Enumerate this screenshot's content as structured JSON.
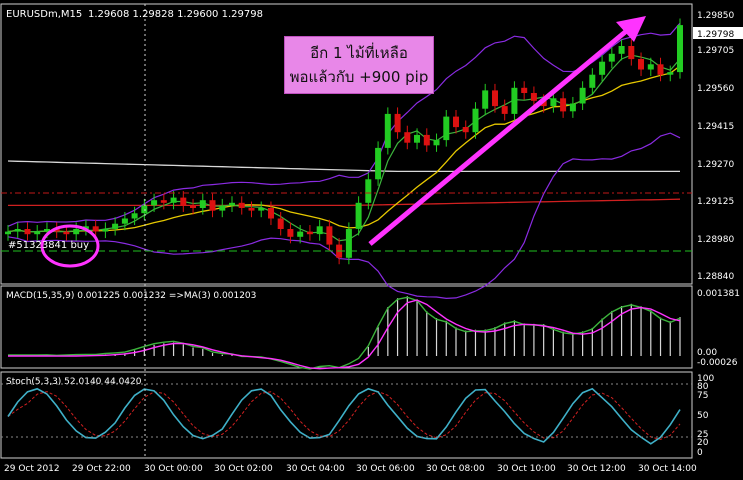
{
  "header": {
    "symbol_label": "EURUSDm,M15",
    "ohlc_label": "1.29608 1.29828 1.29600 1.29798"
  },
  "annotation": {
    "line1": "อีก 1 ไม้ที่เหลือ",
    "line2": "พอแล้วกับ +900 pip"
  },
  "order_label": "#51323841 buy",
  "current_price_label": "1.29798",
  "price_axis": [
    "1.29850",
    "1.29705",
    "1.29560",
    "1.29415",
    "1.29270",
    "1.29125",
    "1.28980",
    "1.28840"
  ],
  "macd": {
    "label": "MACD(15,35,9) 0.001225 0.001232 =>MA(3) 0.001203",
    "axis": [
      "0.001381",
      "0.00",
      "-0.00026"
    ]
  },
  "stoch": {
    "label": "Stoch(5,3,3) 52.0140 44.0420",
    "axis": [
      "100",
      "80",
      "75",
      "50",
      "25",
      "20",
      "0"
    ]
  },
  "time_axis": [
    "29 Oct 2012",
    "29 Oct 22:00",
    "30 Oct 00:00",
    "30 Oct 02:00",
    "30 Oct 04:00",
    "30 Oct 06:00",
    "30 Oct 08:00",
    "30 Oct 10:00",
    "30 Oct 12:00",
    "30 Oct 14:00"
  ],
  "colors": {
    "bull": "#22cc22",
    "bear": "#dd1111",
    "bollinger": "#8a2be2",
    "ma_green": "#3cb43c",
    "ma_yellow": "#e6c800",
    "ma_red": "#d02020",
    "ma_white": "#d8d8d8",
    "arrow": "#ff33ff",
    "stoch_main": "#3fb0c8",
    "stoch_signal": "#d02020"
  },
  "chart_data": {
    "type": "candlestick",
    "symbol": "EURUSDm",
    "timeframe": "M15",
    "ylim": [
      1.2884,
      1.2985
    ],
    "candles_close": [
      1.2901,
      1.2902,
      1.29,
      1.2901,
      1.2902,
      1.2901,
      1.29,
      1.2902,
      1.2903,
      1.2901,
      1.2902,
      1.2904,
      1.2906,
      1.2908,
      1.2911,
      1.2913,
      1.2912,
      1.2914,
      1.2911,
      1.291,
      1.2913,
      1.2909,
      1.2911,
      1.2912,
      1.291,
      1.2909,
      1.291,
      1.2906,
      1.2902,
      1.2899,
      1.2901,
      1.29,
      1.2903,
      1.2896,
      1.2891,
      1.2902,
      1.2912,
      1.2921,
      1.2933,
      1.2946,
      1.2939,
      1.2935,
      1.2938,
      1.2934,
      1.2936,
      1.2945,
      1.2941,
      1.2939,
      1.2948,
      1.2955,
      1.2949,
      1.2946,
      1.2956,
      1.2954,
      1.2951,
      1.2949,
      1.2952,
      1.2947,
      1.295,
      1.2956,
      1.2961,
      1.2966,
      1.2969,
      1.2972,
      1.2967,
      1.2963,
      1.2965,
      1.2961,
      1.2962,
      1.298
    ]
  }
}
